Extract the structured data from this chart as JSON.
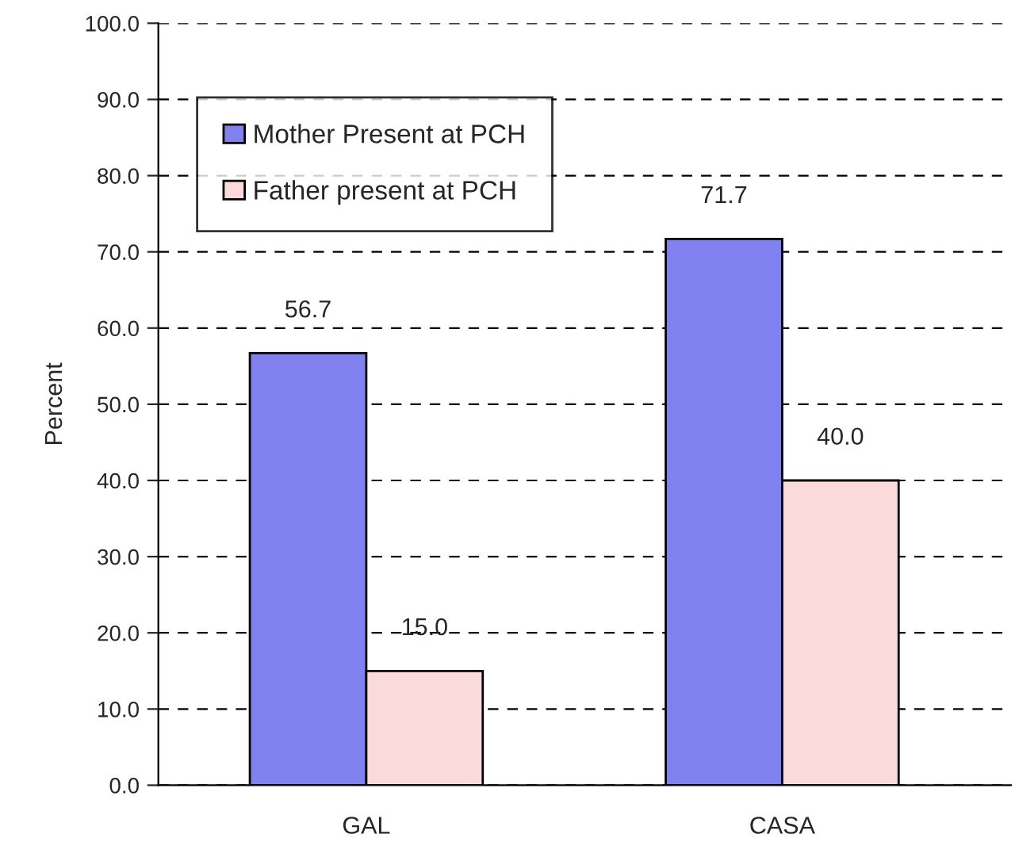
{
  "chart_data": {
    "type": "bar",
    "ylabel": "Percent",
    "categories": [
      "GAL",
      "CASA"
    ],
    "series": [
      {
        "name": "Mother Present at PCH",
        "color": "#8080f0",
        "values": [
          56.7,
          71.7
        ],
        "value_labels": [
          "56.7",
          "71.7"
        ]
      },
      {
        "name": "Father present at PCH",
        "color": "#fadada",
        "values": [
          15.0,
          40.0
        ],
        "value_labels": [
          "15.0",
          "40.0"
        ]
      }
    ],
    "ylim": [
      0,
      100
    ],
    "yticks": [
      {
        "value": 0,
        "label": "0.0"
      },
      {
        "value": 10,
        "label": "10.0"
      },
      {
        "value": 20,
        "label": "20.0"
      },
      {
        "value": 30,
        "label": "30.0"
      },
      {
        "value": 40,
        "label": "40.0"
      },
      {
        "value": 50,
        "label": "50.0"
      },
      {
        "value": 60,
        "label": "60.0"
      },
      {
        "value": 70,
        "label": "70.0"
      },
      {
        "value": 80,
        "label": "80.0"
      },
      {
        "value": 90,
        "label": "90.0"
      },
      {
        "value": 100,
        "label": "100.0"
      }
    ],
    "grid": "y",
    "legend": "top left"
  }
}
